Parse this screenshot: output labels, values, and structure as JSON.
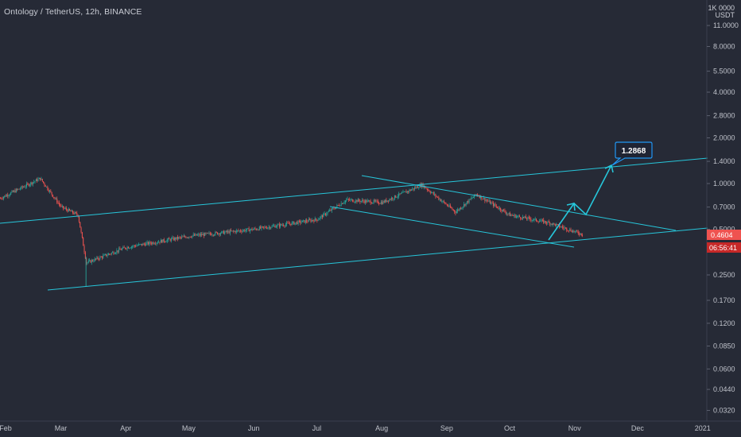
{
  "header": {
    "title": "Ontology / TetherUS, 12h, BINANCE",
    "currency_line1": "1K 0000",
    "currency_line2": "USDT"
  },
  "chart_data": {
    "type": "candlestick",
    "title": "Ontology / TetherUS, 12h, BINANCE",
    "y_scale": "log",
    "ylim": [
      0.029,
      12.5
    ],
    "y_ticks": [
      "11.0000",
      "8.0000",
      "5.5000",
      "4.0000",
      "2.8000",
      "2.0000",
      "1.4000",
      "1.0000",
      "0.7000",
      "0.5000",
      "0.2500",
      "0.1700",
      "0.1200",
      "0.0850",
      "0.0600",
      "0.0440",
      "0.0320"
    ],
    "x_ticks": [
      "Feb",
      "Mar",
      "Apr",
      "May",
      "Jun",
      "Jul",
      "Aug",
      "Sep",
      "Oct",
      "Nov",
      "Dec",
      "2021"
    ],
    "last_price": "0.4604",
    "countdown": "06:56:41",
    "callout": "1.2868",
    "colors": {
      "up": "#26a69a",
      "down": "#ef5350",
      "trendline": "#26c6da",
      "price_tag": "#ef5350",
      "callout_border": "#2196f3"
    },
    "approx_closes": [
      {
        "date": "2020-02-01",
        "close": 0.8
      },
      {
        "date": "2020-02-20",
        "close": 1.08
      },
      {
        "date": "2020-03-01",
        "close": 0.7
      },
      {
        "date": "2020-03-09",
        "close": 0.62
      },
      {
        "date": "2020-03-13",
        "close": 0.3
      },
      {
        "date": "2020-04-01",
        "close": 0.38
      },
      {
        "date": "2020-05-01",
        "close": 0.45
      },
      {
        "date": "2020-06-01",
        "close": 0.5
      },
      {
        "date": "2020-07-01",
        "close": 0.58
      },
      {
        "date": "2020-07-15",
        "close": 0.78
      },
      {
        "date": "2020-08-01",
        "close": 0.75
      },
      {
        "date": "2020-08-20",
        "close": 0.98
      },
      {
        "date": "2020-09-05",
        "close": 0.65
      },
      {
        "date": "2020-09-15",
        "close": 0.85
      },
      {
        "date": "2020-10-01",
        "close": 0.62
      },
      {
        "date": "2020-10-20",
        "close": 0.55
      },
      {
        "date": "2020-11-05",
        "close": 0.46
      }
    ]
  }
}
